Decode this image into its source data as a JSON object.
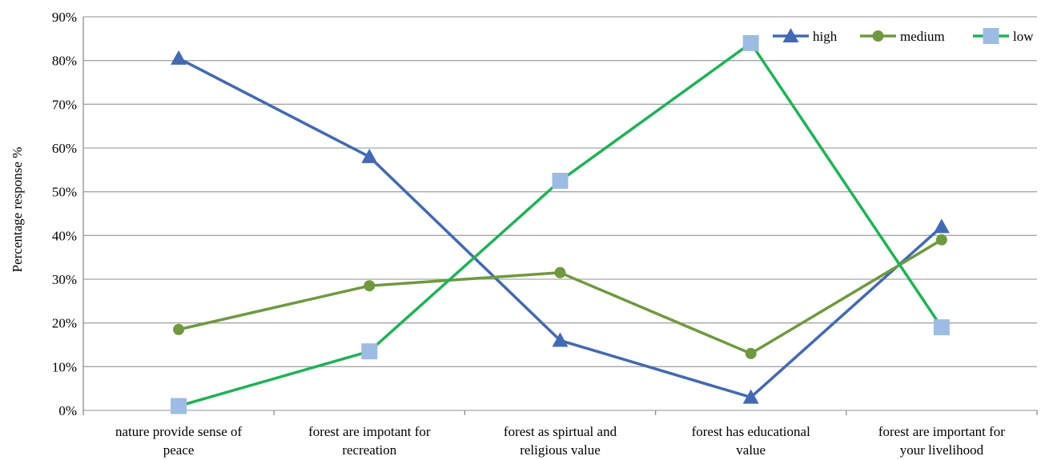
{
  "chart_data": {
    "type": "line",
    "title": "",
    "xlabel": "",
    "ylabel": "Percentage response %",
    "ylim": [
      0,
      90
    ],
    "y_ticks": [
      "0%",
      "10%",
      "20%",
      "30%",
      "40%",
      "50%",
      "60%",
      "70%",
      "80%",
      "90%"
    ],
    "y_tick_values": [
      0,
      10,
      20,
      30,
      40,
      50,
      60,
      70,
      80,
      90
    ],
    "grid": true,
    "legend_position": "top-right",
    "categories": [
      [
        "nature provide sense of",
        "peace"
      ],
      [
        "forest are impotant for",
        "recreation"
      ],
      [
        "forest as spirtual and",
        "religious value"
      ],
      [
        "forest has educational",
        "value"
      ],
      [
        "forest are important for",
        "your livelihood"
      ]
    ],
    "series": [
      {
        "name": "high",
        "color": "#4169B5",
        "marker": "triangle",
        "values": [
          80.5,
          58,
          16,
          3,
          42
        ]
      },
      {
        "name": "medium",
        "color": "#6E9A3C",
        "marker": "circle",
        "values": [
          18.5,
          28.5,
          31.5,
          13,
          39
        ]
      },
      {
        "name": "low",
        "color": "#1DB356",
        "marker_color": "#9CBCE3",
        "marker": "square",
        "values": [
          1,
          13.5,
          52.5,
          84,
          19
        ]
      }
    ]
  }
}
